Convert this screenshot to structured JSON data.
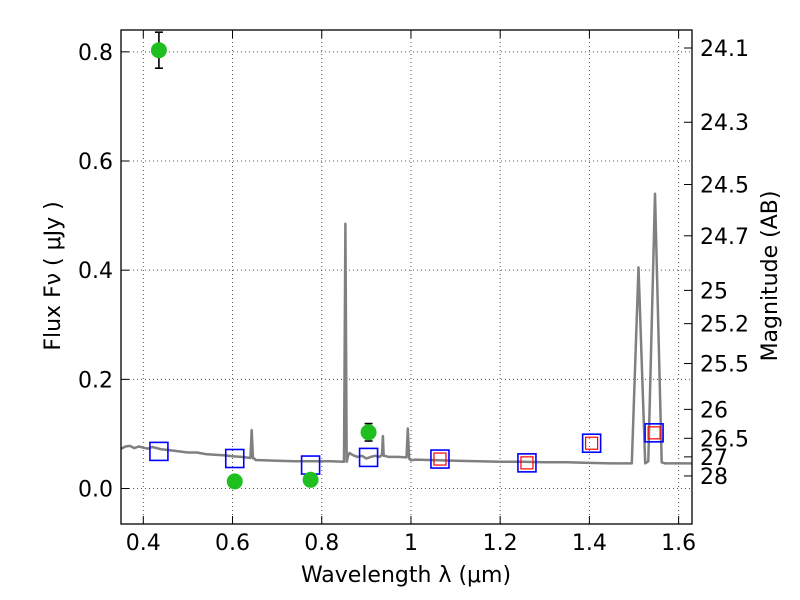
{
  "chart_data": {
    "type": "scatter",
    "xlabel": "Wavelength  λ (μm)",
    "ylabel": "Flux  Fν  ( μJy )",
    "ylabel_right": "Magnitude (AB)",
    "xlim": [
      0.35,
      1.63
    ],
    "ylim": [
      -0.065,
      0.84
    ],
    "grid": true,
    "x_ticks": [
      0.4,
      0.6,
      0.8,
      1.0,
      1.2,
      1.4,
      1.6
    ],
    "x_tick_labels": [
      "0.4",
      "0.6",
      "0.8",
      "1",
      "1.2",
      "1.4",
      "1.6"
    ],
    "y_ticks": [
      0.0,
      0.2,
      0.4,
      0.6,
      0.8
    ],
    "y_tick_labels": [
      "0.0",
      "0.2",
      "0.4",
      "0.6",
      "0.8"
    ],
    "right_ticks": [
      {
        "flux": 0.807,
        "label": "24.1"
      },
      {
        "flux": 0.671,
        "label": "24.3"
      },
      {
        "flux": 0.557,
        "label": "24.5"
      },
      {
        "flux": 0.463,
        "label": "24.7"
      },
      {
        "flux": 0.363,
        "label": "25"
      },
      {
        "flux": 0.302,
        "label": "25.2"
      },
      {
        "flux": 0.229,
        "label": "25.5"
      },
      {
        "flux": 0.145,
        "label": "26"
      },
      {
        "flux": 0.092,
        "label": "26.5"
      },
      {
        "flux": 0.058,
        "label": "27"
      },
      {
        "flux": 0.023,
        "label": "28"
      }
    ],
    "colors": {
      "model": "#808080",
      "observed": "#1fbf1f",
      "model_photometry": "#0000ff",
      "upper_photometry": "#ff0000",
      "grid": "#555555"
    },
    "model_spectrum": {
      "x": [
        0.35,
        0.36,
        0.37,
        0.38,
        0.39,
        0.4,
        0.41,
        0.42,
        0.43,
        0.44,
        0.46,
        0.48,
        0.5,
        0.52,
        0.54,
        0.56,
        0.58,
        0.6,
        0.62,
        0.64,
        0.643,
        0.646,
        0.649,
        0.652,
        0.66,
        0.7,
        0.74,
        0.78,
        0.82,
        0.85,
        0.853,
        0.856,
        0.859,
        0.862,
        0.87,
        0.88,
        0.89,
        0.9,
        0.91,
        0.92,
        0.93,
        0.935,
        0.937,
        0.939,
        0.941,
        0.95,
        0.97,
        0.99,
        0.993,
        0.996,
        0.999,
        1.002,
        1.01,
        1.05,
        1.1,
        1.15,
        1.2,
        1.25,
        1.3,
        1.35,
        1.4,
        1.45,
        1.49,
        1.495,
        1.51,
        1.525,
        1.532,
        1.547,
        1.562,
        1.57,
        1.63
      ],
      "y": [
        0.073,
        0.077,
        0.078,
        0.074,
        0.077,
        0.075,
        0.073,
        0.076,
        0.074,
        0.072,
        0.07,
        0.068,
        0.066,
        0.066,
        0.063,
        0.062,
        0.061,
        0.059,
        0.058,
        0.056,
        0.107,
        0.055,
        0.055,
        0.052,
        0.052,
        0.051,
        0.05,
        0.05,
        0.05,
        0.049,
        0.485,
        0.049,
        0.06,
        0.065,
        0.061,
        0.058,
        0.06,
        0.055,
        0.058,
        0.06,
        0.058,
        0.062,
        0.096,
        0.06,
        0.06,
        0.058,
        0.058,
        0.057,
        0.11,
        0.055,
        0.052,
        0.052,
        0.053,
        0.052,
        0.051,
        0.05,
        0.049,
        0.049,
        0.048,
        0.048,
        0.047,
        0.046,
        0.046,
        0.046,
        0.405,
        0.046,
        0.05,
        0.54,
        0.048,
        0.046,
        0.046
      ]
    },
    "observed_points": [
      {
        "x": 0.435,
        "y": 0.803,
        "err": 0.033
      },
      {
        "x": 0.605,
        "y": 0.013,
        "err": 0.009
      },
      {
        "x": 0.775,
        "y": 0.016,
        "err": 0.011
      },
      {
        "x": 0.905,
        "y": 0.103,
        "err": 0.016
      }
    ],
    "model_photometry": [
      {
        "x": 0.435,
        "y": 0.068
      },
      {
        "x": 0.605,
        "y": 0.055
      },
      {
        "x": 0.775,
        "y": 0.043
      },
      {
        "x": 0.905,
        "y": 0.057
      },
      {
        "x": 1.065,
        "y": 0.054
      },
      {
        "x": 1.26,
        "y": 0.047
      },
      {
        "x": 1.405,
        "y": 0.083
      },
      {
        "x": 1.545,
        "y": 0.102
      }
    ],
    "upper_photometry": [
      {
        "x": 1.065,
        "y": 0.054
      },
      {
        "x": 1.26,
        "y": 0.047
      },
      {
        "x": 1.405,
        "y": 0.083
      },
      {
        "x": 1.545,
        "y": 0.102
      }
    ]
  }
}
